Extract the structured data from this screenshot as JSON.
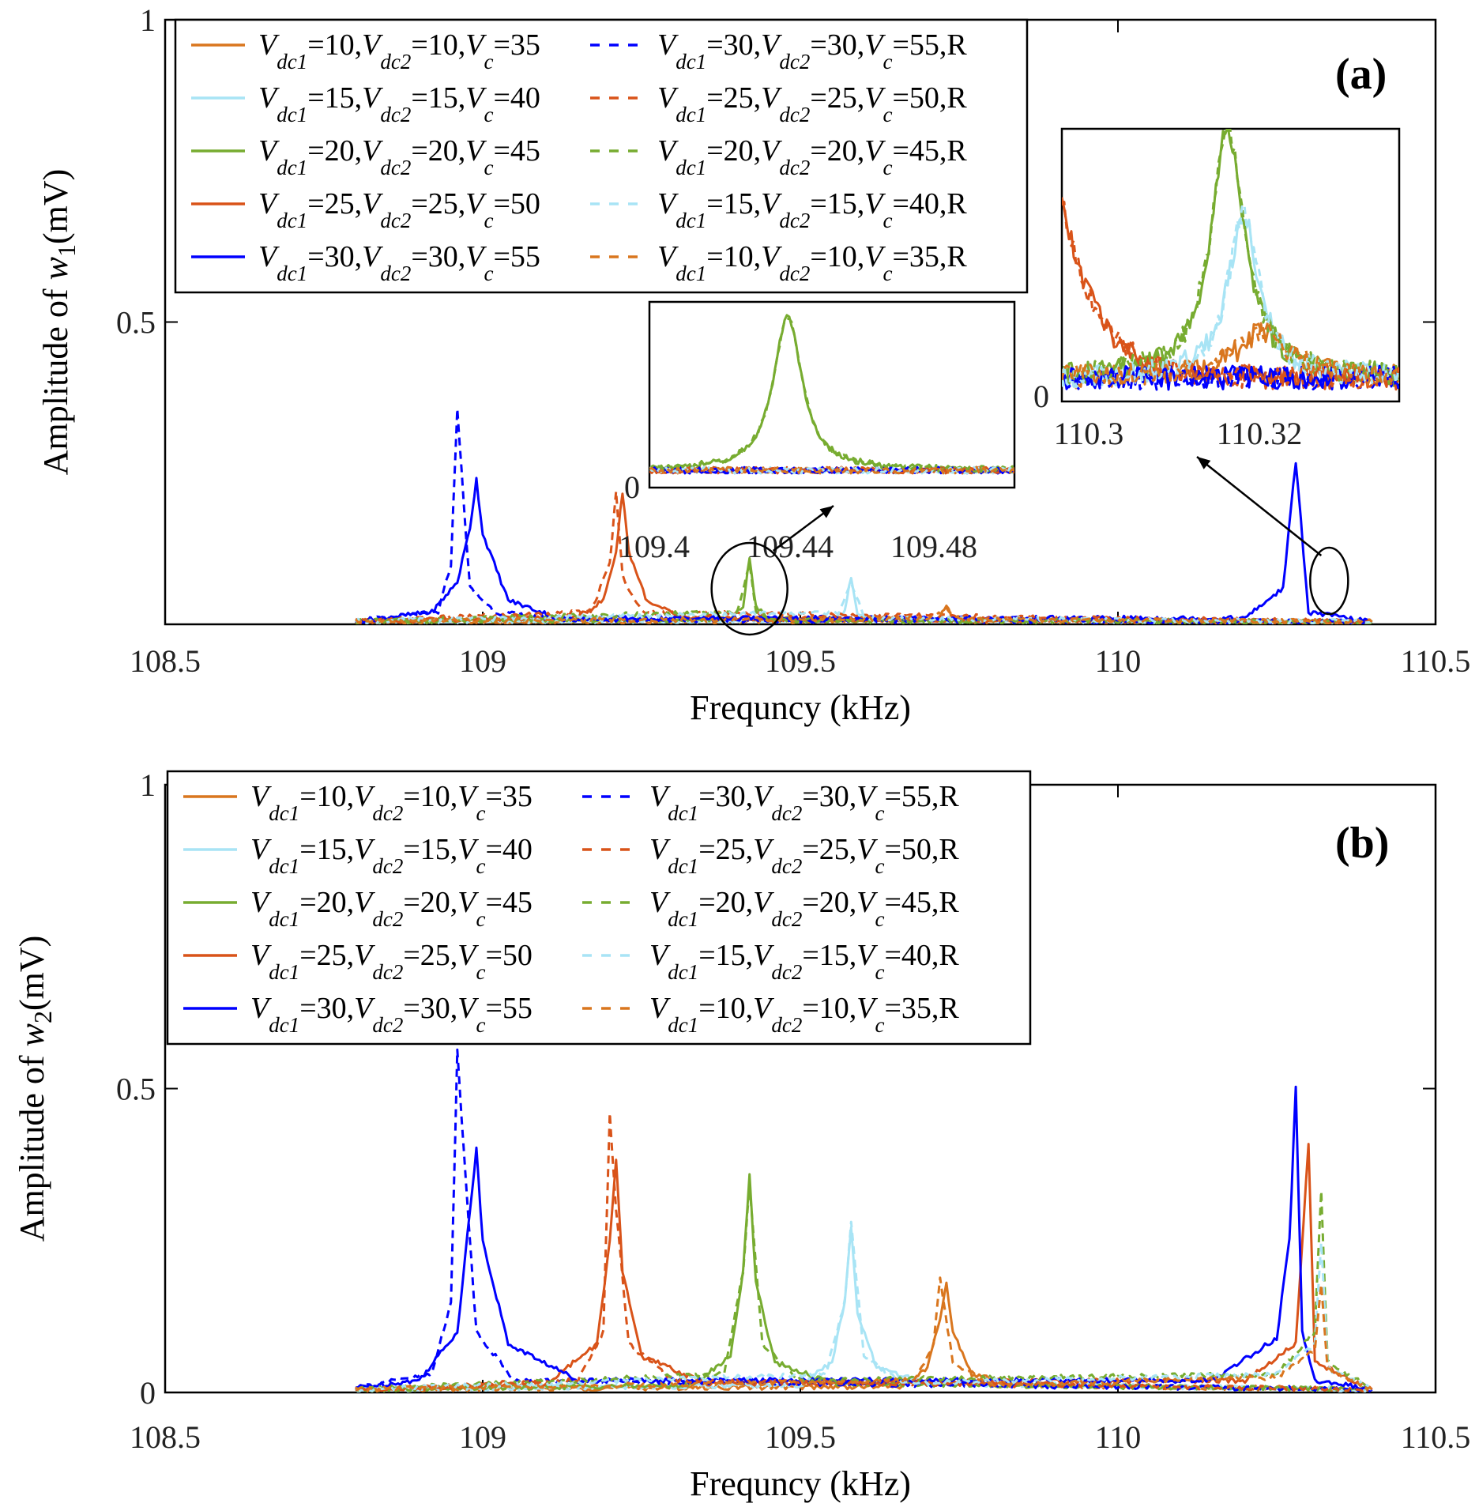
{
  "chart_data": [
    {
      "type": "line",
      "panel_label": "(a)",
      "xlabel": "Frequncy (kHz)",
      "ylabel": "Amplitude of w1(mV)",
      "ylabel_parts": {
        "pre": "Amplitude of ",
        "var": "w",
        "sub": "1",
        "post": "(mV)"
      },
      "xlim": [
        108.5,
        110.5
      ],
      "ylim": [
        0,
        1
      ],
      "xticks": [
        108.5,
        109,
        109.5,
        110,
        110.5
      ],
      "xtick_labels": [
        "108.5",
        "109",
        "109.5",
        "110",
        "110.5"
      ],
      "yticks": [
        0.5,
        1
      ],
      "ytick_labels": [
        "0.5",
        "1"
      ],
      "legend_position": "top-left",
      "series": [
        {
          "name": "Vdc1=10,Vdc2=10,Vc=35",
          "color": "#D9761E",
          "dash": false,
          "x": [
            108.8,
            109.7,
            109.72,
            109.73,
            109.74,
            109.76,
            110.4
          ],
          "y": [
            0.005,
            0.006,
            0.012,
            0.03,
            0.012,
            0.006,
            0.004
          ]
        },
        {
          "name": "Vdc1=15,Vdc2=15,Vc=40",
          "color": "#A8E4F5",
          "dash": false,
          "x": [
            108.8,
            109.55,
            109.57,
            109.58,
            109.59,
            109.61,
            110.4
          ],
          "y": [
            0.005,
            0.007,
            0.02,
            0.08,
            0.02,
            0.007,
            0.004
          ]
        },
        {
          "name": "Vdc1=20,Vdc2=20,Vc=45",
          "color": "#77AC30",
          "dash": false,
          "x": [
            108.8,
            109.39,
            109.41,
            109.42,
            109.43,
            109.45,
            110.4
          ],
          "y": [
            0.005,
            0.008,
            0.03,
            0.11,
            0.03,
            0.008,
            0.004
          ]
        },
        {
          "name": "Vdc1=25,Vdc2=25,Vc=50",
          "color": "#D95319",
          "dash": false,
          "x": [
            108.8,
            109.15,
            109.19,
            109.21,
            109.22,
            109.23,
            109.26,
            109.32,
            110.4
          ],
          "y": [
            0.005,
            0.012,
            0.04,
            0.12,
            0.22,
            0.12,
            0.035,
            0.01,
            0.004
          ]
        },
        {
          "name": "Vdc1=30,Vdc2=30,Vc=55",
          "color": "#0000FF",
          "dash": false,
          "x": [
            108.8,
            108.92,
            108.96,
            108.98,
            108.99,
            109.0,
            109.04,
            109.12,
            110.2,
            110.26,
            110.28,
            110.3,
            110.4
          ],
          "y": [
            0.005,
            0.02,
            0.07,
            0.16,
            0.24,
            0.15,
            0.04,
            0.01,
            0.01,
            0.06,
            0.27,
            0.02,
            0.004
          ]
        },
        {
          "name": "Vdc1=30,Vdc2=30,Vc=55,R",
          "color": "#0000FF",
          "dash": true,
          "x": [
            108.8,
            108.93,
            108.95,
            108.96,
            108.97,
            108.98,
            109.02,
            109.12,
            110.4
          ],
          "y": [
            0.005,
            0.02,
            0.1,
            0.36,
            0.2,
            0.06,
            0.02,
            0.008,
            0.004
          ]
        },
        {
          "name": "Vdc1=25,Vdc2=25,Vc=50,R",
          "color": "#D95319",
          "dash": true,
          "x": [
            108.8,
            109.17,
            109.2,
            109.21,
            109.22,
            109.25,
            110.4
          ],
          "y": [
            0.005,
            0.02,
            0.1,
            0.22,
            0.08,
            0.02,
            0.004
          ]
        },
        {
          "name": "Vdc1=20,Vdc2=20,Vc=45,R",
          "color": "#77AC30",
          "dash": true,
          "x": [
            108.8,
            109.4,
            109.42,
            109.43,
            109.45,
            110.4
          ],
          "y": [
            0.005,
            0.02,
            0.1,
            0.02,
            0.006,
            0.004
          ]
        },
        {
          "name": "Vdc1=15,Vdc2=15,Vc=40,R",
          "color": "#A8E4F5",
          "dash": true,
          "x": [
            108.8,
            109.56,
            109.58,
            109.6,
            110.4
          ],
          "y": [
            0.005,
            0.02,
            0.07,
            0.01,
            0.004
          ]
        },
        {
          "name": "Vdc1=10,Vdc2=10,Vc=35,R",
          "color": "#D9761E",
          "dash": true,
          "x": [
            108.8,
            109.71,
            109.73,
            109.75,
            110.4
          ],
          "y": [
            0.005,
            0.01,
            0.025,
            0.008,
            0.004
          ]
        }
      ],
      "insets": [
        {
          "xticks": [
            "109.4",
            "109.44",
            "109.48"
          ],
          "yticks": [
            "0"
          ],
          "zoom_region_x": 109.42
        },
        {
          "xticks": [
            "110.3",
            "110.32"
          ],
          "yticks": [
            "0"
          ],
          "zoom_region_x": 110.33
        }
      ]
    },
    {
      "type": "line",
      "panel_label": "(b)",
      "xlabel": "Frequncy (kHz)",
      "ylabel": "Amplitude of w2(mV)",
      "ylabel_parts": {
        "pre": "Amplitude of ",
        "var": "w",
        "sub": "2",
        "post": "(mV)"
      },
      "xlim": [
        108.5,
        110.5
      ],
      "ylim": [
        0,
        1
      ],
      "xticks": [
        108.5,
        109,
        109.5,
        110,
        110.5
      ],
      "xtick_labels": [
        "108.5",
        "109",
        "109.5",
        "110",
        "110.5"
      ],
      "yticks": [
        0,
        0.5,
        1
      ],
      "ytick_labels": [
        "0",
        "0.5",
        "1"
      ],
      "legend_position": "top-left",
      "series": [
        {
          "name": "Vdc1=10,Vdc2=10,Vc=35",
          "color": "#D9761E",
          "dash": false,
          "x": [
            108.8,
            109.66,
            109.7,
            109.72,
            109.73,
            109.74,
            109.77,
            109.85,
            110.4
          ],
          "y": [
            0.005,
            0.01,
            0.04,
            0.12,
            0.18,
            0.1,
            0.03,
            0.012,
            0.005
          ]
        },
        {
          "name": "Vdc1=15,Vdc2=15,Vc=40",
          "color": "#A8E4F5",
          "dash": false,
          "x": [
            108.8,
            109.5,
            109.55,
            109.57,
            109.58,
            109.59,
            109.62,
            109.7,
            110.4
          ],
          "y": [
            0.005,
            0.012,
            0.05,
            0.15,
            0.27,
            0.13,
            0.04,
            0.015,
            0.005
          ]
        },
        {
          "name": "Vdc1=20,Vdc2=20,Vc=45",
          "color": "#77AC30",
          "dash": false,
          "x": [
            108.8,
            109.33,
            109.39,
            109.41,
            109.42,
            109.43,
            109.46,
            109.55,
            110.4
          ],
          "y": [
            0.005,
            0.012,
            0.06,
            0.2,
            0.36,
            0.18,
            0.05,
            0.015,
            0.005
          ]
        },
        {
          "name": "Vdc1=25,Vdc2=25,Vc=50",
          "color": "#D95319",
          "dash": false,
          "x": [
            108.8,
            109.1,
            109.18,
            109.2,
            109.21,
            109.22,
            109.25,
            109.35,
            110.2,
            110.28,
            110.3,
            110.31,
            110.4
          ],
          "y": [
            0.005,
            0.015,
            0.08,
            0.25,
            0.38,
            0.2,
            0.06,
            0.015,
            0.02,
            0.08,
            0.41,
            0.05,
            0.005
          ]
        },
        {
          "name": "Vdc1=30,Vdc2=30,Vc=55",
          "color": "#0000FF",
          "dash": false,
          "x": [
            108.8,
            108.9,
            108.96,
            108.98,
            108.99,
            109.0,
            109.04,
            109.15,
            110.15,
            110.25,
            110.27,
            110.28,
            110.29,
            110.31,
            110.4
          ],
          "y": [
            0.008,
            0.02,
            0.1,
            0.3,
            0.4,
            0.25,
            0.08,
            0.02,
            0.02,
            0.09,
            0.25,
            0.5,
            0.1,
            0.02,
            0.005
          ]
        },
        {
          "name": "Vdc1=30,Vdc2=30,Vc=55,R",
          "color": "#0000FF",
          "dash": true,
          "x": [
            108.8,
            108.92,
            108.95,
            108.96,
            108.97,
            108.99,
            109.05,
            110.4
          ],
          "y": [
            0.008,
            0.03,
            0.15,
            0.56,
            0.4,
            0.1,
            0.02,
            0.005
          ]
        },
        {
          "name": "Vdc1=25,Vdc2=25,Vc=50,R",
          "color": "#D95319",
          "dash": true,
          "x": [
            108.8,
            109.15,
            109.19,
            109.2,
            109.21,
            109.23,
            109.3,
            110.4
          ],
          "y": [
            0.005,
            0.02,
            0.1,
            0.46,
            0.3,
            0.08,
            0.02,
            0.005
          ]
        },
        {
          "name": "Vdc1=20,Vdc2=20,Vc=45,R",
          "color": "#77AC30",
          "dash": true,
          "x": [
            108.8,
            109.38,
            109.41,
            109.42,
            109.44,
            109.5,
            110.25,
            110.31,
            110.32,
            110.33,
            110.4
          ],
          "y": [
            0.005,
            0.03,
            0.2,
            0.34,
            0.08,
            0.02,
            0.03,
            0.1,
            0.33,
            0.05,
            0.005
          ]
        },
        {
          "name": "Vdc1=15,Vdc2=15,Vc=40,R",
          "color": "#A8E4F5",
          "dash": true,
          "x": [
            108.8,
            109.54,
            109.57,
            109.58,
            109.6,
            109.66,
            110.25,
            110.31,
            110.32,
            110.33,
            110.4
          ],
          "y": [
            0.005,
            0.03,
            0.15,
            0.28,
            0.06,
            0.015,
            0.03,
            0.08,
            0.25,
            0.04,
            0.005
          ]
        },
        {
          "name": "Vdc1=10,Vdc2=10,Vc=35,R",
          "color": "#D9761E",
          "dash": true,
          "x": [
            108.8,
            109.68,
            109.71,
            109.72,
            109.74,
            109.8,
            110.25,
            110.31,
            110.32,
            110.33,
            110.4
          ],
          "y": [
            0.005,
            0.02,
            0.08,
            0.19,
            0.05,
            0.012,
            0.025,
            0.07,
            0.18,
            0.04,
            0.005
          ]
        }
      ]
    }
  ],
  "legend_entries": [
    {
      "a": "10",
      "b": "10",
      "c": "35",
      "r": "",
      "color": "#D9761E",
      "dash": false
    },
    {
      "a": "15",
      "b": "15",
      "c": "40",
      "r": "",
      "color": "#A8E4F5",
      "dash": false
    },
    {
      "a": "20",
      "b": "20",
      "c": "45",
      "r": "",
      "color": "#77AC30",
      "dash": false
    },
    {
      "a": "25",
      "b": "25",
      "c": "50",
      "r": "",
      "color": "#D95319",
      "dash": false
    },
    {
      "a": "30",
      "b": "30",
      "c": "55",
      "r": "",
      "color": "#0000FF",
      "dash": false
    },
    {
      "a": "30",
      "b": "30",
      "c": "55",
      "r": ",R",
      "color": "#0000FF",
      "dash": true
    },
    {
      "a": "25",
      "b": "25",
      "c": "50",
      "r": ",R",
      "color": "#D95319",
      "dash": true
    },
    {
      "a": "20",
      "b": "20",
      "c": "45",
      "r": ",R",
      "color": "#77AC30",
      "dash": true
    },
    {
      "a": "15",
      "b": "15",
      "c": "40",
      "r": ",R",
      "color": "#A8E4F5",
      "dash": true
    },
    {
      "a": "10",
      "b": "10",
      "c": "35",
      "r": ",R",
      "color": "#D9761E",
      "dash": true
    }
  ],
  "legend_symbols": {
    "v": "V",
    "dc1": "dc1",
    "dc2": "dc2",
    "c": "c"
  }
}
